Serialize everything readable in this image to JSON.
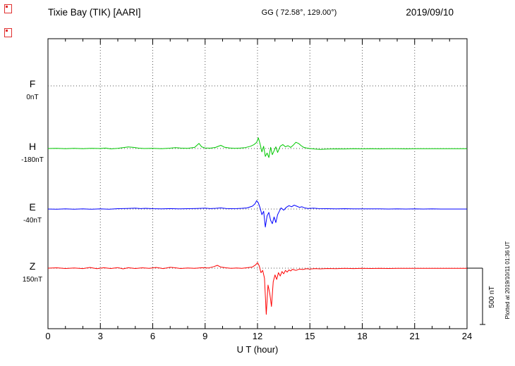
{
  "header": {
    "station": "Tixie Bay (TIK)  [AARI]",
    "coords": "GG ( 72.58°, 129.00°)",
    "date": "2019/09/10"
  },
  "footer": {
    "plotted_at": "Plotted at 2019/10/11 01:36 UT"
  },
  "scale_bar": {
    "label": "500 nT",
    "nT": 500
  },
  "chart_data": {
    "type": "line",
    "title": "Tixie Bay (TIK) [AARI] magnetogram 2019/09/10",
    "xlabel": "U T (hour)",
    "x_range": [
      0,
      24
    ],
    "x_ticks": [
      0,
      3,
      6,
      9,
      12,
      15,
      18,
      21,
      24
    ],
    "grid": "dotted vertical at 3h intervals, dotted baseline per component",
    "legend_position": "left margin component labels",
    "y_scale_bar_nT": 500,
    "series": [
      {
        "name": "F",
        "color": "#FFA500",
        "baseline_label": "0nT",
        "points": []
      },
      {
        "name": "H",
        "color": "#00C800",
        "baseline_label": "-180nT",
        "points": [
          [
            0,
            0
          ],
          [
            0.5,
            2
          ],
          [
            1,
            -2
          ],
          [
            1.5,
            1
          ],
          [
            2,
            -1
          ],
          [
            2.5,
            2
          ],
          [
            3,
            0
          ],
          [
            3.3,
            4
          ],
          [
            3.6,
            -3
          ],
          [
            4,
            2
          ],
          [
            4.3,
            8
          ],
          [
            4.6,
            14
          ],
          [
            4.9,
            10
          ],
          [
            5.2,
            3
          ],
          [
            5.5,
            0
          ],
          [
            6,
            2
          ],
          [
            6.5,
            -2
          ],
          [
            7,
            3
          ],
          [
            7.3,
            8
          ],
          [
            7.6,
            4
          ],
          [
            8,
            2
          ],
          [
            8.4,
            10
          ],
          [
            8.65,
            45
          ],
          [
            8.8,
            15
          ],
          [
            9,
            5
          ],
          [
            9.3,
            3
          ],
          [
            9.6,
            10
          ],
          [
            9.9,
            28
          ],
          [
            10.1,
            12
          ],
          [
            10.4,
            5
          ],
          [
            10.7,
            2
          ],
          [
            11,
            4
          ],
          [
            11.3,
            8
          ],
          [
            11.6,
            20
          ],
          [
            11.8,
            35
          ],
          [
            11.95,
            55
          ],
          [
            12.05,
            95
          ],
          [
            12.15,
            40
          ],
          [
            12.25,
            -30
          ],
          [
            12.35,
            20
          ],
          [
            12.45,
            -70
          ],
          [
            12.55,
            -40
          ],
          [
            12.65,
            -80
          ],
          [
            12.75,
            10
          ],
          [
            12.85,
            -55
          ],
          [
            12.95,
            -20
          ],
          [
            13.05,
            15
          ],
          [
            13.15,
            -35
          ],
          [
            13.3,
            20
          ],
          [
            13.45,
            35
          ],
          [
            13.6,
            15
          ],
          [
            13.75,
            25
          ],
          [
            13.9,
            10
          ],
          [
            14.05,
            30
          ],
          [
            14.2,
            55
          ],
          [
            14.35,
            45
          ],
          [
            14.5,
            25
          ],
          [
            14.65,
            10
          ],
          [
            14.8,
            5
          ],
          [
            15,
            0
          ],
          [
            15.3,
            -5
          ],
          [
            15.6,
            -8
          ],
          [
            16,
            -5
          ],
          [
            16.5,
            -3
          ],
          [
            17,
            -4
          ],
          [
            17.5,
            -2
          ],
          [
            18,
            -3
          ],
          [
            18.5,
            -2
          ],
          [
            19,
            -3
          ],
          [
            19.5,
            -1
          ],
          [
            20,
            -2
          ],
          [
            20.5,
            -3
          ],
          [
            21,
            -2
          ],
          [
            21.5,
            -1
          ],
          [
            22,
            -2
          ],
          [
            22.5,
            -1
          ],
          [
            23,
            -2
          ],
          [
            23.5,
            -1
          ],
          [
            24,
            -2
          ]
        ]
      },
      {
        "name": "E",
        "color": "#0000FF",
        "baseline_label": "-40nT",
        "points": [
          [
            0,
            0
          ],
          [
            0.5,
            -2
          ],
          [
            1,
            1
          ],
          [
            1.5,
            -1
          ],
          [
            2,
            2
          ],
          [
            2.5,
            -2
          ],
          [
            3,
            1
          ],
          [
            3.5,
            -2
          ],
          [
            4,
            3
          ],
          [
            4.5,
            5
          ],
          [
            5,
            8
          ],
          [
            5.3,
            4
          ],
          [
            5.6,
            6
          ],
          [
            6,
            3
          ],
          [
            6.5,
            2
          ],
          [
            7,
            4
          ],
          [
            7.5,
            2
          ],
          [
            8,
            3
          ],
          [
            8.5,
            5
          ],
          [
            9,
            8
          ],
          [
            9.3,
            4
          ],
          [
            9.6,
            6
          ],
          [
            9.9,
            10
          ],
          [
            10.2,
            5
          ],
          [
            10.5,
            3
          ],
          [
            10.8,
            4
          ],
          [
            11.1,
            6
          ],
          [
            11.4,
            10
          ],
          [
            11.7,
            25
          ],
          [
            11.85,
            45
          ],
          [
            11.95,
            75
          ],
          [
            12.05,
            55
          ],
          [
            12.15,
            10
          ],
          [
            12.25,
            -50
          ],
          [
            12.35,
            -20
          ],
          [
            12.45,
            -160
          ],
          [
            12.55,
            -60
          ],
          [
            12.65,
            -30
          ],
          [
            12.75,
            -100
          ],
          [
            12.85,
            -130
          ],
          [
            12.95,
            -70
          ],
          [
            13.05,
            -120
          ],
          [
            13.15,
            -50
          ],
          [
            13.25,
            -20
          ],
          [
            13.35,
            10
          ],
          [
            13.5,
            -10
          ],
          [
            13.65,
            15
          ],
          [
            13.8,
            30
          ],
          [
            13.95,
            20
          ],
          [
            14.1,
            35
          ],
          [
            14.25,
            25
          ],
          [
            14.4,
            15
          ],
          [
            14.55,
            20
          ],
          [
            14.7,
            10
          ],
          [
            14.9,
            5
          ],
          [
            15.2,
            8
          ],
          [
            15.5,
            4
          ],
          [
            16,
            3
          ],
          [
            16.5,
            2
          ],
          [
            17,
            3
          ],
          [
            17.5,
            1
          ],
          [
            18,
            2
          ],
          [
            18.5,
            1
          ],
          [
            19,
            2
          ],
          [
            19.5,
            0
          ],
          [
            20,
            1
          ],
          [
            20.5,
            0
          ],
          [
            21,
            1
          ],
          [
            21.5,
            0
          ],
          [
            22,
            1
          ],
          [
            22.5,
            0
          ],
          [
            23,
            0
          ],
          [
            23.5,
            0
          ],
          [
            24,
            0
          ]
        ]
      },
      {
        "name": "Z",
        "color": "#FF0000",
        "baseline_label": "150nT",
        "points": [
          [
            0,
            0
          ],
          [
            0.5,
            3
          ],
          [
            1,
            -3
          ],
          [
            1.5,
            2
          ],
          [
            2,
            -4
          ],
          [
            2.4,
            6
          ],
          [
            2.8,
            -5
          ],
          [
            3.2,
            4
          ],
          [
            3.6,
            -3
          ],
          [
            4,
            5
          ],
          [
            4.3,
            -6
          ],
          [
            4.6,
            4
          ],
          [
            5,
            -3
          ],
          [
            5.4,
            3
          ],
          [
            5.8,
            -2
          ],
          [
            6.2,
            6
          ],
          [
            6.6,
            -4
          ],
          [
            7,
            8
          ],
          [
            7.3,
            3
          ],
          [
            7.6,
            -3
          ],
          [
            8,
            2
          ],
          [
            8.4,
            -2
          ],
          [
            8.8,
            4
          ],
          [
            9.2,
            2
          ],
          [
            9.5,
            14
          ],
          [
            9.7,
            25
          ],
          [
            9.9,
            10
          ],
          [
            10.2,
            3
          ],
          [
            10.5,
            -2
          ],
          [
            10.8,
            2
          ],
          [
            11.1,
            -2
          ],
          [
            11.4,
            4
          ],
          [
            11.7,
            10
          ],
          [
            11.9,
            30
          ],
          [
            12.0,
            50
          ],
          [
            12.1,
            20
          ],
          [
            12.2,
            -40
          ],
          [
            12.3,
            -20
          ],
          [
            12.4,
            -90
          ],
          [
            12.5,
            -410
          ],
          [
            12.6,
            -150
          ],
          [
            12.7,
            -220
          ],
          [
            12.8,
            -340
          ],
          [
            12.9,
            -120
          ],
          [
            13.0,
            -60
          ],
          [
            13.1,
            -100
          ],
          [
            13.2,
            -40
          ],
          [
            13.3,
            -70
          ],
          [
            13.4,
            -30
          ],
          [
            13.5,
            -50
          ],
          [
            13.6,
            -20
          ],
          [
            13.7,
            -35
          ],
          [
            13.8,
            -15
          ],
          [
            13.9,
            -25
          ],
          [
            14.0,
            -10
          ],
          [
            14.2,
            -20
          ],
          [
            14.4,
            -8
          ],
          [
            14.6,
            -12
          ],
          [
            14.8,
            -5
          ],
          [
            15,
            -8
          ],
          [
            15.3,
            -4
          ],
          [
            15.6,
            -6
          ],
          [
            16,
            -3
          ],
          [
            16.5,
            -5
          ],
          [
            17,
            -2
          ],
          [
            17.5,
            -4
          ],
          [
            18,
            -2
          ],
          [
            18.5,
            -3
          ],
          [
            19,
            -1
          ],
          [
            19.5,
            -3
          ],
          [
            20,
            -1
          ],
          [
            20.5,
            -2
          ],
          [
            21,
            -1
          ],
          [
            21.5,
            -2
          ],
          [
            22,
            -1
          ],
          [
            22.5,
            -2
          ],
          [
            23,
            -1
          ],
          [
            23.5,
            -1
          ],
          [
            24,
            -1
          ]
        ]
      }
    ]
  }
}
